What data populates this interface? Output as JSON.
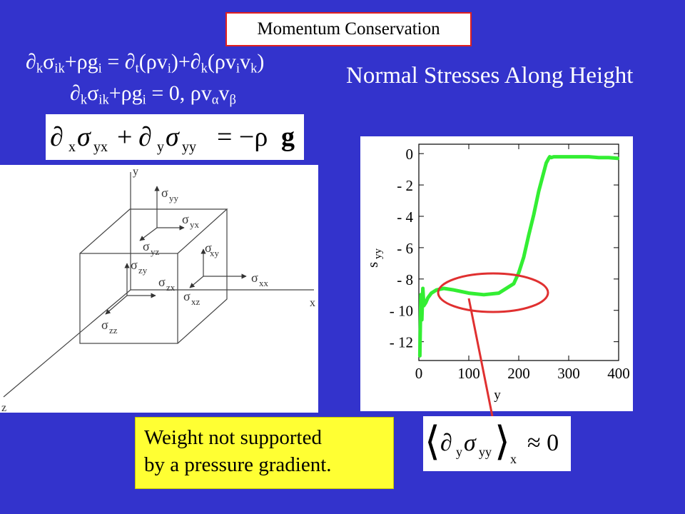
{
  "slide": {
    "title": "Momentum Conservation",
    "heading": "Normal Stresses Along Height",
    "eq1": {
      "d1": "∂",
      "s1": "k",
      "sig1": "σ",
      "s2": "ik",
      "plus1": "+ρg",
      "s3": "i",
      "eqpart": " = ∂",
      "s4": "t",
      "pp1": "(ρv",
      "s5": "i",
      "close1": ")+∂",
      "s6": "k",
      "pp2": "(ρv",
      "s7": "i",
      "v2": "v",
      "s8": "k",
      "close2": ")"
    },
    "eq2": {
      "d1": "∂",
      "s1": "k",
      "sig1": "σ",
      "s2": "ik",
      "plus1": "+ρg",
      "s3": "i",
      "rest": " = 0, ρv",
      "s4": "α",
      "v2": "v",
      "s5": "β"
    },
    "boxed_eq": {
      "d1": "∂",
      "s1": "x",
      "sig1": "σ",
      "s2": "yx",
      "plus": "+",
      "d2": "∂",
      "s3": "y",
      "sig2": "σ",
      "s4": "yy",
      "rhs": "= −ρ",
      "g": "g"
    },
    "note": {
      "line1": "Weight not supported",
      "line2": "by a pressure gradient."
    },
    "avg_eq": {
      "left": "⟨",
      "d": "∂",
      "s1": "y",
      "sig": "σ",
      "s2": "yy",
      "right": "⟩",
      "sub": "x",
      "approx": "≈ 0"
    }
  },
  "diagram": {
    "axes": {
      "x": "x",
      "y": "y",
      "z": "z"
    },
    "labels": [
      {
        "sym": "σ",
        "sub": "yy"
      },
      {
        "sym": "σ",
        "sub": "yx"
      },
      {
        "sym": "σ",
        "sub": "yz"
      },
      {
        "sym": "σ",
        "sub": "xy"
      },
      {
        "sym": "σ",
        "sub": "zy"
      },
      {
        "sym": "σ",
        "sub": "zx"
      },
      {
        "sym": "σ",
        "sub": "xx"
      },
      {
        "sym": "σ",
        "sub": "xz"
      },
      {
        "sym": "σ",
        "sub": "zz"
      }
    ]
  },
  "chart_data": {
    "type": "line",
    "title": "",
    "xlabel": "y",
    "ylabel": "s",
    "ylabel_sub": "yy",
    "xlim": [
      0,
      400
    ],
    "ylim": [
      -13.2,
      0.6
    ],
    "xticks": [
      0,
      100,
      200,
      300,
      400
    ],
    "xtick_labels": [
      "0",
      "100",
      "200",
      "300",
      "400"
    ],
    "yticks": [
      0,
      -2,
      -4,
      -6,
      -8,
      -10,
      -12
    ],
    "ytick_labels": [
      "0",
      "- 2",
      "- 4",
      "- 6",
      "- 8",
      "- 10",
      "- 12"
    ],
    "grid": false,
    "line_color": "#33ee33",
    "highlight_color": "#e03030",
    "series": [
      {
        "x": [
          2,
          4,
          6,
          8,
          10,
          14,
          18,
          25,
          35,
          50,
          70,
          100,
          130,
          160,
          175,
          190,
          200,
          210,
          220,
          230,
          240,
          250,
          255,
          260,
          262,
          265,
          270,
          280,
          300,
          320,
          340,
          360,
          380,
          398
        ],
        "y": [
          -12.9,
          -9.0,
          -10.6,
          -8.6,
          -9.7,
          -9.5,
          -9.2,
          -8.9,
          -8.7,
          -8.6,
          -8.7,
          -8.9,
          -9.0,
          -8.9,
          -8.6,
          -8.3,
          -7.6,
          -6.6,
          -5.2,
          -3.9,
          -2.4,
          -1.2,
          -0.6,
          -0.3,
          -0.2,
          -0.25,
          -0.2,
          -0.2,
          -0.2,
          -0.2,
          -0.2,
          -0.25,
          -0.25,
          -0.3
        ]
      }
    ]
  }
}
